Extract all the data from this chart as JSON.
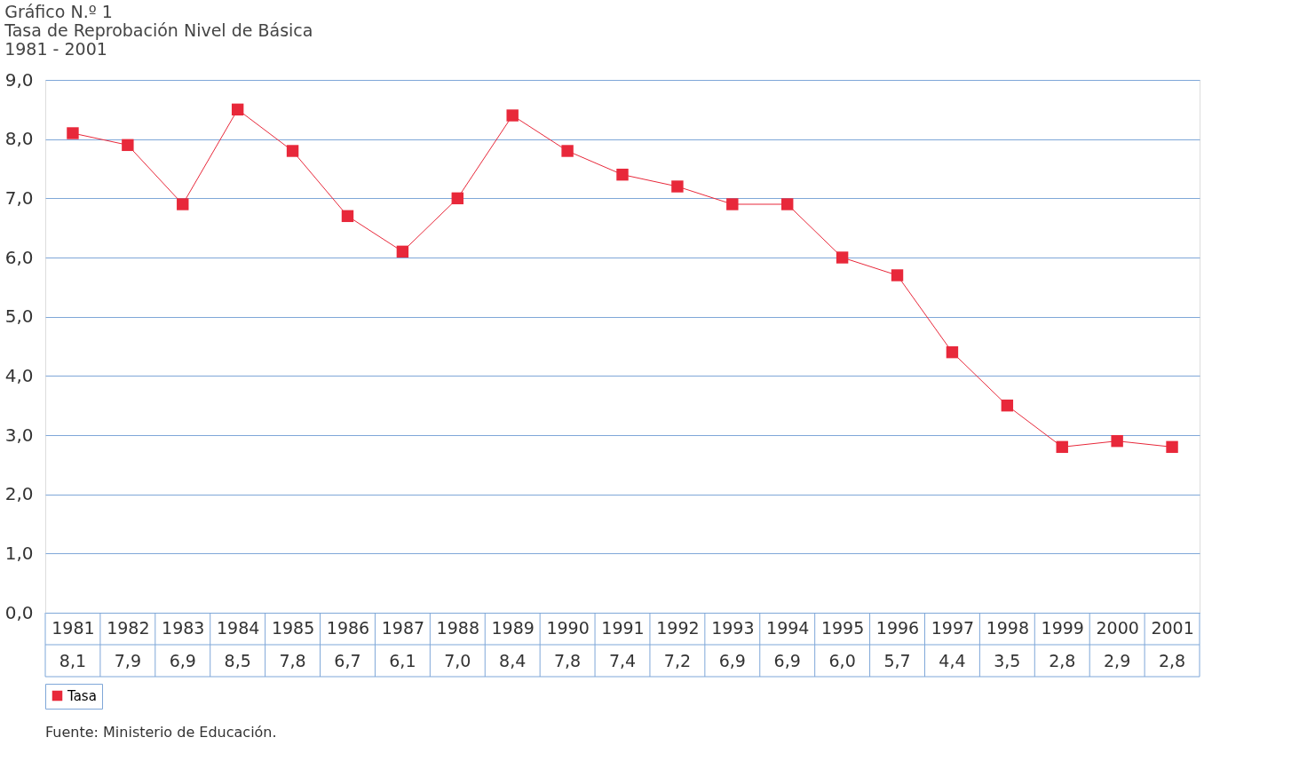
{
  "chart_data": {
    "type": "line",
    "title": "Gráfico N.º 1\nTasa de Reprobación Nivel de Básica\n1981 - 2001",
    "categories": [
      "1981",
      "1982",
      "1983",
      "1984",
      "1985",
      "1986",
      "1987",
      "1988",
      "1989",
      "1990",
      "1991",
      "1992",
      "1993",
      "1994",
      "1995",
      "1996",
      "1997",
      "1998",
      "1999",
      "2000",
      "2001"
    ],
    "series": [
      {
        "name": "Tasa",
        "color": "#e8283a",
        "values": [
          8.1,
          7.9,
          6.9,
          8.5,
          7.8,
          6.7,
          6.1,
          7.0,
          8.4,
          7.8,
          7.4,
          7.2,
          6.9,
          6.9,
          6.0,
          5.7,
          4.4,
          3.5,
          2.8,
          2.9,
          2.8
        ],
        "value_labels": [
          "8,1",
          "7,9",
          "6,9",
          "8,5",
          "7,8",
          "6,7",
          "6,1",
          "7,0",
          "8,4",
          "7,8",
          "7,4",
          "7,2",
          "6,9",
          "6,9",
          "6,0",
          "5,7",
          "4,4",
          "3,5",
          "2,8",
          "2,9",
          "2,8"
        ]
      }
    ],
    "ylim": [
      0,
      9
    ],
    "yticks": [
      {
        "value": 0,
        "label": "0,0"
      },
      {
        "value": 1,
        "label": "1,0"
      },
      {
        "value": 2,
        "label": "2,0"
      },
      {
        "value": 3,
        "label": "3,0"
      },
      {
        "value": 4,
        "label": "4,0"
      },
      {
        "value": 5,
        "label": "5,0"
      },
      {
        "value": 6,
        "label": "6,0"
      },
      {
        "value": 7,
        "label": "7,0"
      },
      {
        "value": 8,
        "label": "8,0"
      },
      {
        "value": 9,
        "label": "9,0"
      }
    ],
    "grid": "y",
    "legend": "bottom left",
    "marker": "square",
    "line_style": "solid",
    "annotations": [
      "Fuente: Ministerio de Educación."
    ]
  }
}
